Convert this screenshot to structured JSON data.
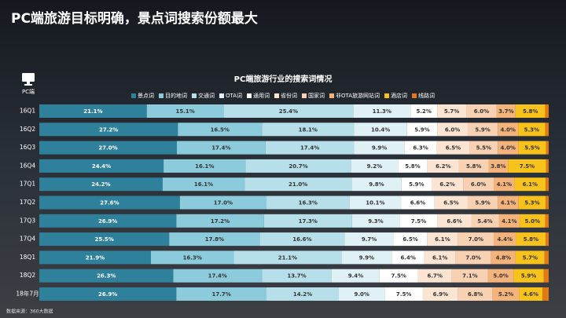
{
  "page_title": "PC端旅游目标明确，景点词搜索份额最大",
  "icon_label": "PC端",
  "source": "数据来源：360大数据",
  "chart_data": {
    "type": "stacked_bar_horizontal",
    "title": "PC端旅游行业的搜索词情况",
    "xlim": [
      0,
      100
    ],
    "legend": "top",
    "categories": [
      "16Q1",
      "16Q2",
      "16Q3",
      "16Q4",
      "17Q1",
      "17Q2",
      "17Q3",
      "17Q4",
      "18Q1",
      "18Q2",
      "18年7月"
    ],
    "series": [
      {
        "name": "景点词",
        "color": "#2f809a",
        "values": [
          21.1,
          27.2,
          27.0,
          24.4,
          24.2,
          27.6,
          26.9,
          25.5,
          21.9,
          26.3,
          26.9
        ],
        "value_labels": [
          "21.1%",
          "27.2%",
          "27.0%",
          "24.4%",
          "24.2%",
          "27.6%",
          "26.9%",
          "25.5%",
          "21.9%",
          "26.3%",
          "26.9%"
        ]
      },
      {
        "name": "目的地词",
        "color": "#8ccbdc",
        "values": [
          15.1,
          16.5,
          17.4,
          16.1,
          16.1,
          17.0,
          17.2,
          17.8,
          16.3,
          17.4,
          17.7
        ],
        "value_labels": [
          "15.1%",
          "16.5%",
          "17.4%",
          "16.1%",
          "16.1%",
          "17.0%",
          "17.2%",
          "17.8%",
          "16.3%",
          "17.4%",
          "17.7%"
        ]
      },
      {
        "name": "交通词",
        "color": "#b7dfea",
        "values": [
          25.4,
          18.1,
          17.4,
          20.7,
          21.0,
          16.3,
          17.3,
          16.6,
          21.1,
          13.7,
          14.2
        ],
        "value_labels": [
          "25.4%",
          "18.1%",
          "17.4%",
          "20.7%",
          "21.0%",
          "16.3%",
          "17.3%",
          "16.6%",
          "21.1%",
          "13.7%",
          "14.2%"
        ]
      },
      {
        "name": "OTA词",
        "color": "#e0f1f5",
        "values": [
          11.3,
          10.4,
          9.9,
          9.2,
          9.8,
          10.1,
          9.3,
          9.7,
          9.9,
          9.4,
          9.0
        ],
        "value_labels": [
          "11.3%",
          "10.4%",
          "9.9%",
          "9.2%",
          "9.8%",
          "10.1%",
          "9.3%",
          "9.7%",
          "9.9%",
          "9.4%",
          "9.0%"
        ]
      },
      {
        "name": "通用词",
        "color": "#ffffff",
        "values": [
          5.2,
          5.9,
          6.3,
          5.8,
          5.9,
          6.6,
          7.5,
          6.5,
          6.4,
          7.5,
          7.5
        ],
        "value_labels": [
          "5.2%",
          "5.9%",
          "6.3%",
          "5.8%",
          "5.9%",
          "6.6%",
          "7.5%",
          "6.5%",
          "6.4%",
          "7.5%",
          "7.5%"
        ]
      },
      {
        "name": "省份词",
        "color": "#fbe4d2",
        "values": [
          5.7,
          6.0,
          6.5,
          6.2,
          6.2,
          6.5,
          6.6,
          6.1,
          6.1,
          6.7,
          6.9
        ],
        "value_labels": [
          "5.7%",
          "6.0%",
          "6.5%",
          "6.2%",
          "6.2%",
          "6.5%",
          "6.6%",
          "6.1%",
          "6.1%",
          "6.7%",
          "6.9%"
        ]
      },
      {
        "name": "国家词",
        "color": "#f8d1b2",
        "values": [
          6.0,
          5.9,
          5.5,
          5.8,
          6.0,
          5.9,
          5.4,
          7.0,
          7.0,
          7.1,
          6.8
        ],
        "value_labels": [
          "6.0%",
          "5.9%",
          "5.5%",
          "5.8%",
          "6.0%",
          "5.9%",
          "5.4%",
          "7.0%",
          "7.0%",
          "7.1%",
          "6.8%"
        ]
      },
      {
        "name": "非OTA旅游网站词",
        "color": "#f5b37c",
        "values": [
          3.7,
          4.0,
          4.0,
          3.8,
          4.1,
          4.1,
          4.1,
          4.4,
          4.8,
          5.0,
          5.2
        ],
        "value_labels": [
          "3.7%",
          "4.0%",
          "4.0%",
          "3.8%",
          "4.1%",
          "4.1%",
          "4.1%",
          "4.4%",
          "4.8%",
          "5.0%",
          "5.2%"
        ]
      },
      {
        "name": "酒店词",
        "color": "#f7c21b",
        "values": [
          5.8,
          5.3,
          5.5,
          7.5,
          6.1,
          5.3,
          5.0,
          5.8,
          5.7,
          5.9,
          4.6
        ],
        "value_labels": [
          "5.8%",
          "5.3%",
          "5.5%",
          "7.5%",
          "6.1%",
          "5.3%",
          "5.0%",
          "5.8%",
          "5.7%",
          "5.9%",
          "4.6%"
        ]
      },
      {
        "name": "线路词",
        "color": "#e07a17",
        "values": [
          0.7,
          0.7,
          0.5,
          0.5,
          0.6,
          0.6,
          0.7,
          0.6,
          0.8,
          1.0,
          1.2
        ]
      }
    ]
  }
}
